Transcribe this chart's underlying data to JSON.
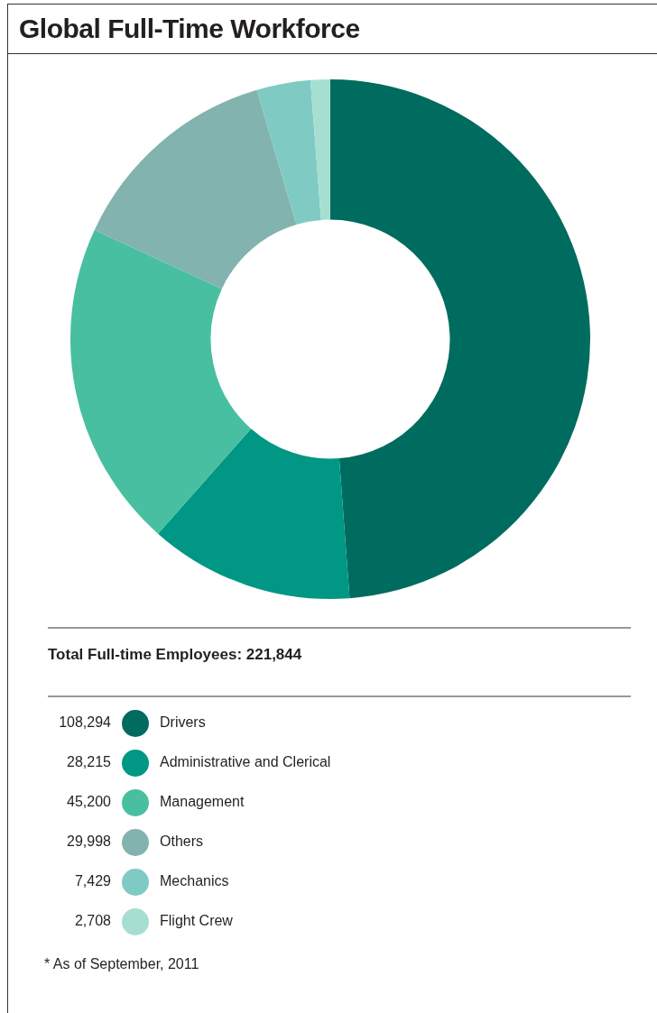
{
  "chart_data": {
    "type": "donut",
    "title": "Global Full-Time Workforce",
    "subtitle": "Total Full-time Employees: 221,844",
    "categories": [
      "Drivers",
      "Administrative and Clerical",
      "Management",
      "Others",
      "Mechanics",
      "Flight Crew"
    ],
    "values": [
      108294,
      28215,
      45200,
      29998,
      7429,
      2708
    ],
    "value_labels": [
      "108,294",
      "28,215",
      "45,200",
      "29,998",
      "7,429",
      "2,708"
    ],
    "colors": [
      "#006b5f",
      "#009784",
      "#48bfa1",
      "#82b3ae",
      "#7fcbc3",
      "#a6dfd2"
    ],
    "data_labels": true,
    "legend": "bottom",
    "annotations": [
      "* As of September, 2011"
    ]
  }
}
